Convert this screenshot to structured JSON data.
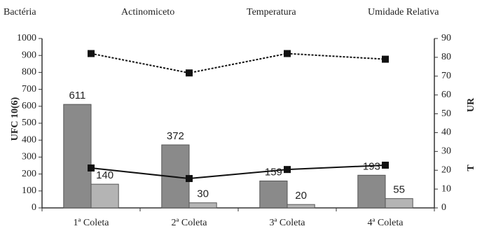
{
  "chart_data": {
    "type": "bar",
    "categories": [
      "1ª Coleta",
      "2ª Coleta",
      "3ª Coleta",
      "4ª Coleta"
    ],
    "series": [
      {
        "name": "Bactéria",
        "type": "bar",
        "color": "#8a8a8a",
        "values": [
          611,
          372,
          159,
          193
        ]
      },
      {
        "name": "Actinomiceto",
        "type": "bar",
        "color": "#b4b4b4",
        "values": [
          140,
          30,
          20,
          55
        ]
      },
      {
        "name": "Temperatura",
        "type": "line",
        "axis": "y2",
        "color": "#111111",
        "dashed": false,
        "values": [
          21.2,
          15.6,
          20.4,
          22.7
        ]
      },
      {
        "name": "Umidade Relativa",
        "type": "line",
        "axis": "y2",
        "color": "#111111",
        "dashed": true,
        "values": [
          82,
          71.7,
          82,
          79
        ]
      }
    ],
    "ylabel": "UFC 10(6)",
    "y2labels": [
      "UR",
      "T"
    ],
    "ylim": [
      0,
      1000
    ],
    "yticks": [
      0,
      100,
      200,
      300,
      400,
      500,
      600,
      700,
      800,
      900,
      1000
    ],
    "y2lim": [
      0,
      90
    ],
    "y2ticks": [
      0,
      10,
      20,
      30,
      40,
      50,
      60,
      70,
      80,
      90
    ]
  }
}
